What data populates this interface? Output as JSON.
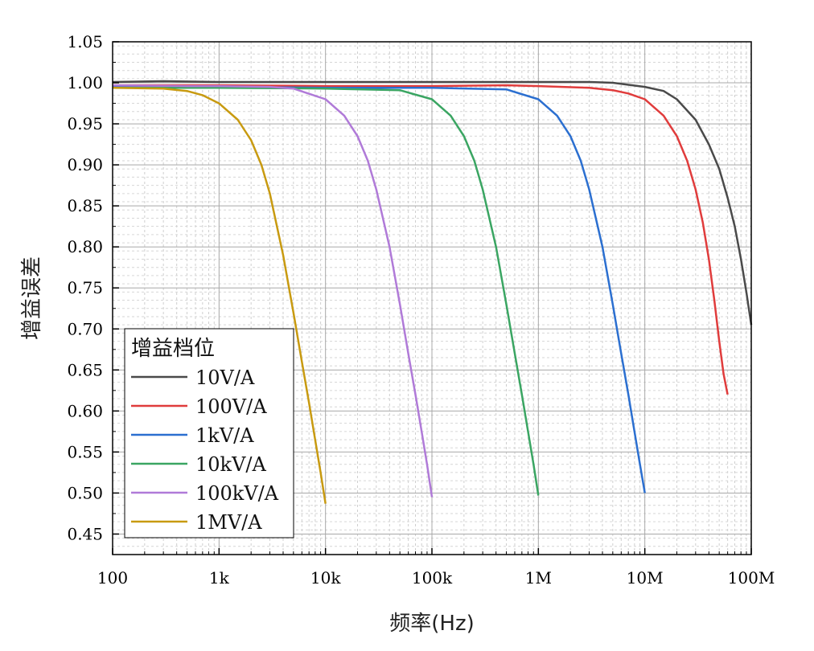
{
  "chart_data": {
    "type": "line",
    "xlabel": "频率(Hz)",
    "ylabel": "增益误差",
    "x_scale": "log",
    "xlim": [
      100,
      100000000
    ],
    "ylim": [
      0.425,
      1.05
    ],
    "x_ticks": [
      100,
      1000,
      10000,
      100000,
      1000000,
      10000000,
      100000000
    ],
    "x_tick_labels": [
      "100",
      "1k",
      "10k",
      "100k",
      "1M",
      "10M",
      "100M"
    ],
    "y_ticks": [
      0.45,
      0.5,
      0.55,
      0.6,
      0.65,
      0.7,
      0.75,
      0.8,
      0.85,
      0.9,
      0.95,
      1.0,
      1.05
    ],
    "y_tick_labels": [
      "0.45",
      "0.50",
      "0.55",
      "0.60",
      "0.65",
      "0.70",
      "0.75",
      "0.80",
      "0.85",
      "0.90",
      "0.95",
      "1.00",
      "1.05"
    ],
    "grid": true,
    "legend": {
      "title": "增益档位",
      "placement": "bottom-left"
    },
    "series": [
      {
        "name": "10V/A",
        "color": "#4a4a4a",
        "x": [
          100,
          300,
          1000,
          10000,
          100000,
          1000000,
          3000000,
          5000000,
          10000000,
          15000000,
          20000000,
          30000000,
          40000000,
          50000000,
          60000000,
          70000000,
          80000000,
          90000000,
          100000000
        ],
        "y": [
          1.001,
          1.002,
          1.001,
          1.001,
          1.001,
          1.001,
          1.001,
          1.0,
          0.995,
          0.99,
          0.98,
          0.955,
          0.925,
          0.895,
          0.86,
          0.825,
          0.785,
          0.745,
          0.705
        ]
      },
      {
        "name": "100V/A",
        "color": "#e03c3c",
        "x": [
          100,
          1000,
          10000,
          100000,
          500000,
          1000000,
          3000000,
          5000000,
          7000000,
          10000000,
          15000000,
          20000000,
          25000000,
          30000000,
          35000000,
          40000000,
          45000000,
          50000000,
          55000000,
          60000000
        ],
        "y": [
          0.997,
          0.997,
          0.996,
          0.996,
          0.997,
          0.996,
          0.994,
          0.991,
          0.987,
          0.98,
          0.96,
          0.935,
          0.905,
          0.87,
          0.83,
          0.785,
          0.735,
          0.685,
          0.645,
          0.62
        ]
      },
      {
        "name": "1kV/A",
        "color": "#2b6fd0",
        "x": [
          100,
          1000,
          10000,
          100000,
          500000,
          1000000,
          1500000,
          2000000,
          2500000,
          3000000,
          4000000,
          5000000,
          6000000,
          7000000,
          8000000,
          9000000,
          10000000
        ],
        "y": [
          0.995,
          0.995,
          0.994,
          0.994,
          0.992,
          0.98,
          0.96,
          0.935,
          0.905,
          0.87,
          0.8,
          0.73,
          0.67,
          0.62,
          0.575,
          0.535,
          0.5
        ]
      },
      {
        "name": "10kV/A",
        "color": "#3aa562",
        "x": [
          100,
          1000,
          10000,
          50000,
          100000,
          150000,
          200000,
          250000,
          300000,
          400000,
          500000,
          600000,
          700000,
          800000,
          900000,
          1000000
        ],
        "y": [
          0.994,
          0.994,
          0.993,
          0.991,
          0.98,
          0.96,
          0.935,
          0.905,
          0.87,
          0.8,
          0.73,
          0.67,
          0.62,
          0.575,
          0.535,
          0.497
        ]
      },
      {
        "name": "100kV/A",
        "color": "#b07ad8",
        "x": [
          100,
          500,
          1000,
          3000,
          5000,
          10000,
          15000,
          20000,
          25000,
          30000,
          40000,
          50000,
          60000,
          70000,
          80000,
          90000,
          100000
        ],
        "y": [
          0.997,
          0.996,
          0.996,
          0.995,
          0.993,
          0.98,
          0.96,
          0.935,
          0.905,
          0.87,
          0.8,
          0.73,
          0.67,
          0.62,
          0.575,
          0.535,
          0.495
        ]
      },
      {
        "name": "1MV/A",
        "color": "#c89a10",
        "x": [
          100,
          300,
          500,
          700,
          1000,
          1500,
          2000,
          2500,
          3000,
          4000,
          5000,
          6000,
          7000,
          8000,
          9000,
          10000
        ],
        "y": [
          0.994,
          0.993,
          0.99,
          0.985,
          0.975,
          0.955,
          0.93,
          0.9,
          0.865,
          0.79,
          0.72,
          0.66,
          0.61,
          0.565,
          0.525,
          0.487
        ]
      }
    ]
  }
}
